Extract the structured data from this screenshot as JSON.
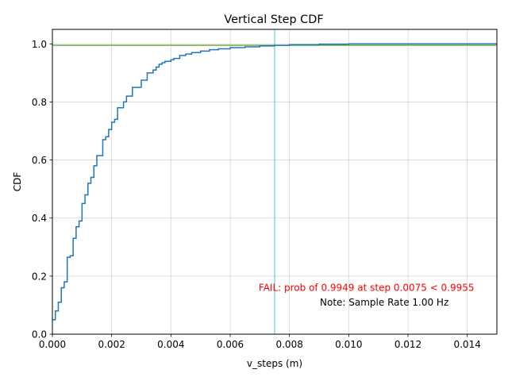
{
  "chart_data": {
    "type": "line",
    "title": "Vertical Step CDF",
    "xlabel": "v_steps (m)",
    "ylabel": "CDF",
    "xlim": [
      0,
      0.015
    ],
    "ylim": [
      0,
      1.05
    ],
    "x_ticks": [
      "0.000",
      "0.002",
      "0.004",
      "0.006",
      "0.008",
      "0.010",
      "0.012",
      "0.014"
    ],
    "x_tick_values": [
      0,
      0.002,
      0.004,
      0.006,
      0.008,
      0.01,
      0.012,
      0.014
    ],
    "y_ticks": [
      "0.0",
      "0.2",
      "0.4",
      "0.6",
      "0.8",
      "1.0"
    ],
    "y_tick_values": [
      0,
      0.2,
      0.4,
      0.6,
      0.8,
      1.0
    ],
    "grid": true,
    "series": [
      {
        "color": "#1f77b4",
        "x": [
          0,
          0.0001,
          0.0002,
          0.0003,
          0.0003,
          0.0004,
          0.0005,
          0.0005,
          0.0006,
          0.0007,
          0.0007,
          0.0008,
          0.0008,
          0.0009,
          0.001,
          0.0011,
          0.0012,
          0.0012,
          0.0013,
          0.0014,
          0.0014,
          0.0015,
          0.0015,
          0.0017,
          0.0017,
          0.0018,
          0.0019,
          0.002,
          0.0021,
          0.0022,
          0.0022,
          0.0024,
          0.0024,
          0.0025,
          0.0025,
          0.0027,
          0.0027,
          0.003,
          0.0032,
          0.0032,
          0.0034,
          0.0035,
          0.0036,
          0.0037,
          0.0038,
          0.004,
          0.0041,
          0.0043,
          0.0043,
          0.0045,
          0.0047,
          0.005,
          0.0053,
          0.0056,
          0.006,
          0.0065,
          0.007,
          0.0075,
          0.008,
          0.009,
          0.01,
          0.012,
          0.015
        ],
        "y": [
          0.05,
          0.08,
          0.11,
          0.14,
          0.16,
          0.18,
          0.22,
          0.265,
          0.27,
          0.28,
          0.33,
          0.34,
          0.37,
          0.39,
          0.45,
          0.48,
          0.5,
          0.52,
          0.54,
          0.56,
          0.58,
          0.61,
          0.615,
          0.62,
          0.67,
          0.68,
          0.705,
          0.73,
          0.74,
          0.76,
          0.78,
          0.79,
          0.8,
          0.81,
          0.82,
          0.825,
          0.85,
          0.875,
          0.88,
          0.9,
          0.91,
          0.92,
          0.93,
          0.935,
          0.94,
          0.945,
          0.95,
          0.955,
          0.96,
          0.965,
          0.97,
          0.975,
          0.98,
          0.983,
          0.987,
          0.99,
          0.993,
          0.9949,
          0.997,
          0.999,
          1.0,
          1.0,
          1.0
        ]
      }
    ],
    "threshold_lines": [
      {
        "orientation": "horizontal",
        "value": 0.9955,
        "color": "#ff7f0e"
      },
      {
        "orientation": "horizontal",
        "value": 0.9949,
        "color": "#2ca02c"
      },
      {
        "orientation": "vertical",
        "value": 0.0075,
        "color": "#17becf"
      }
    ],
    "annotations": [
      {
        "text": "FAIL: prob of 0.9949 at step 0.0075 < 0.9955",
        "color": "#ff0000",
        "x": 0.0106,
        "y": 0.16
      },
      {
        "text": "Note: Sample Rate 1.00 Hz",
        "color": "#000000",
        "x": 0.0112,
        "y": 0.11
      }
    ]
  }
}
